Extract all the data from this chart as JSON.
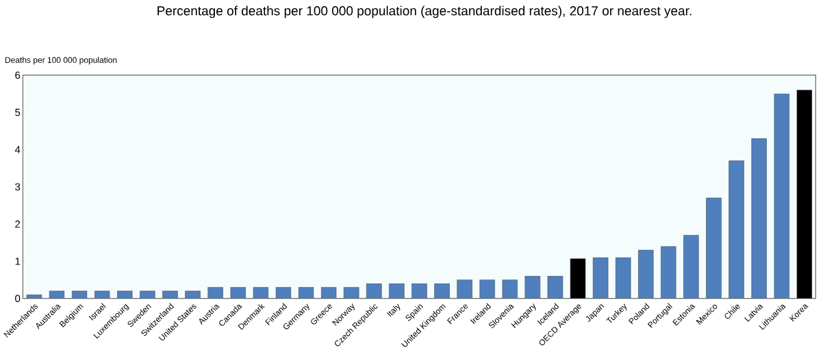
{
  "chart_data": {
    "type": "bar",
    "title": "Percentage of deaths per 100 000 population (age-standardised rates), 2017 or nearest year.",
    "ylabel": "Deaths per 100 000 population",
    "categories": [
      "Netherlands",
      "Australia",
      "Belgium",
      "Israel",
      "Luxembourg",
      "Sweden",
      "Switzerland",
      "United States",
      "Austria",
      "Canada",
      "Denmark",
      "Finland",
      "Germany",
      "Greece",
      "Norway",
      "Czech Republic",
      "Italy",
      "Spain",
      "United Kingdom",
      "France",
      "Ireland",
      "Slovenia",
      "Hungary",
      "Iceland",
      "OECD Average",
      "Japan",
      "Turkey",
      "Poland",
      "Portugal",
      "Estonia",
      "Mexico",
      "Chile",
      "Latvia",
      "Lithuania",
      "Korea"
    ],
    "values": [
      0.1,
      0.2,
      0.2,
      0.2,
      0.2,
      0.2,
      0.2,
      0.2,
      0.3,
      0.3,
      0.3,
      0.3,
      0.3,
      0.3,
      0.3,
      0.4,
      0.4,
      0.4,
      0.4,
      0.5,
      0.5,
      0.5,
      0.6,
      0.6,
      1.07,
      1.1,
      1.1,
      1.3,
      1.4,
      1.7,
      2.7,
      3.7,
      4.3,
      5.5,
      5.6
    ],
    "colors": [
      "#4f7fbd",
      "#4f7fbd",
      "#4f7fbd",
      "#4f7fbd",
      "#4f7fbd",
      "#4f7fbd",
      "#4f7fbd",
      "#4f7fbd",
      "#4f7fbd",
      "#4f7fbd",
      "#4f7fbd",
      "#4f7fbd",
      "#4f7fbd",
      "#4f7fbd",
      "#4f7fbd",
      "#4f7fbd",
      "#4f7fbd",
      "#4f7fbd",
      "#4f7fbd",
      "#4f7fbd",
      "#4f7fbd",
      "#4f7fbd",
      "#4f7fbd",
      "#4f7fbd",
      "#000000",
      "#4f7fbd",
      "#4f7fbd",
      "#4f7fbd",
      "#4f7fbd",
      "#4f7fbd",
      "#4f7fbd",
      "#4f7fbd",
      "#4f7fbd",
      "#4f7fbd",
      "#000000"
    ],
    "ylim": [
      0,
      6
    ],
    "yticks": [
      0,
      1,
      2,
      3,
      4,
      5,
      6
    ],
    "grid": false
  }
}
